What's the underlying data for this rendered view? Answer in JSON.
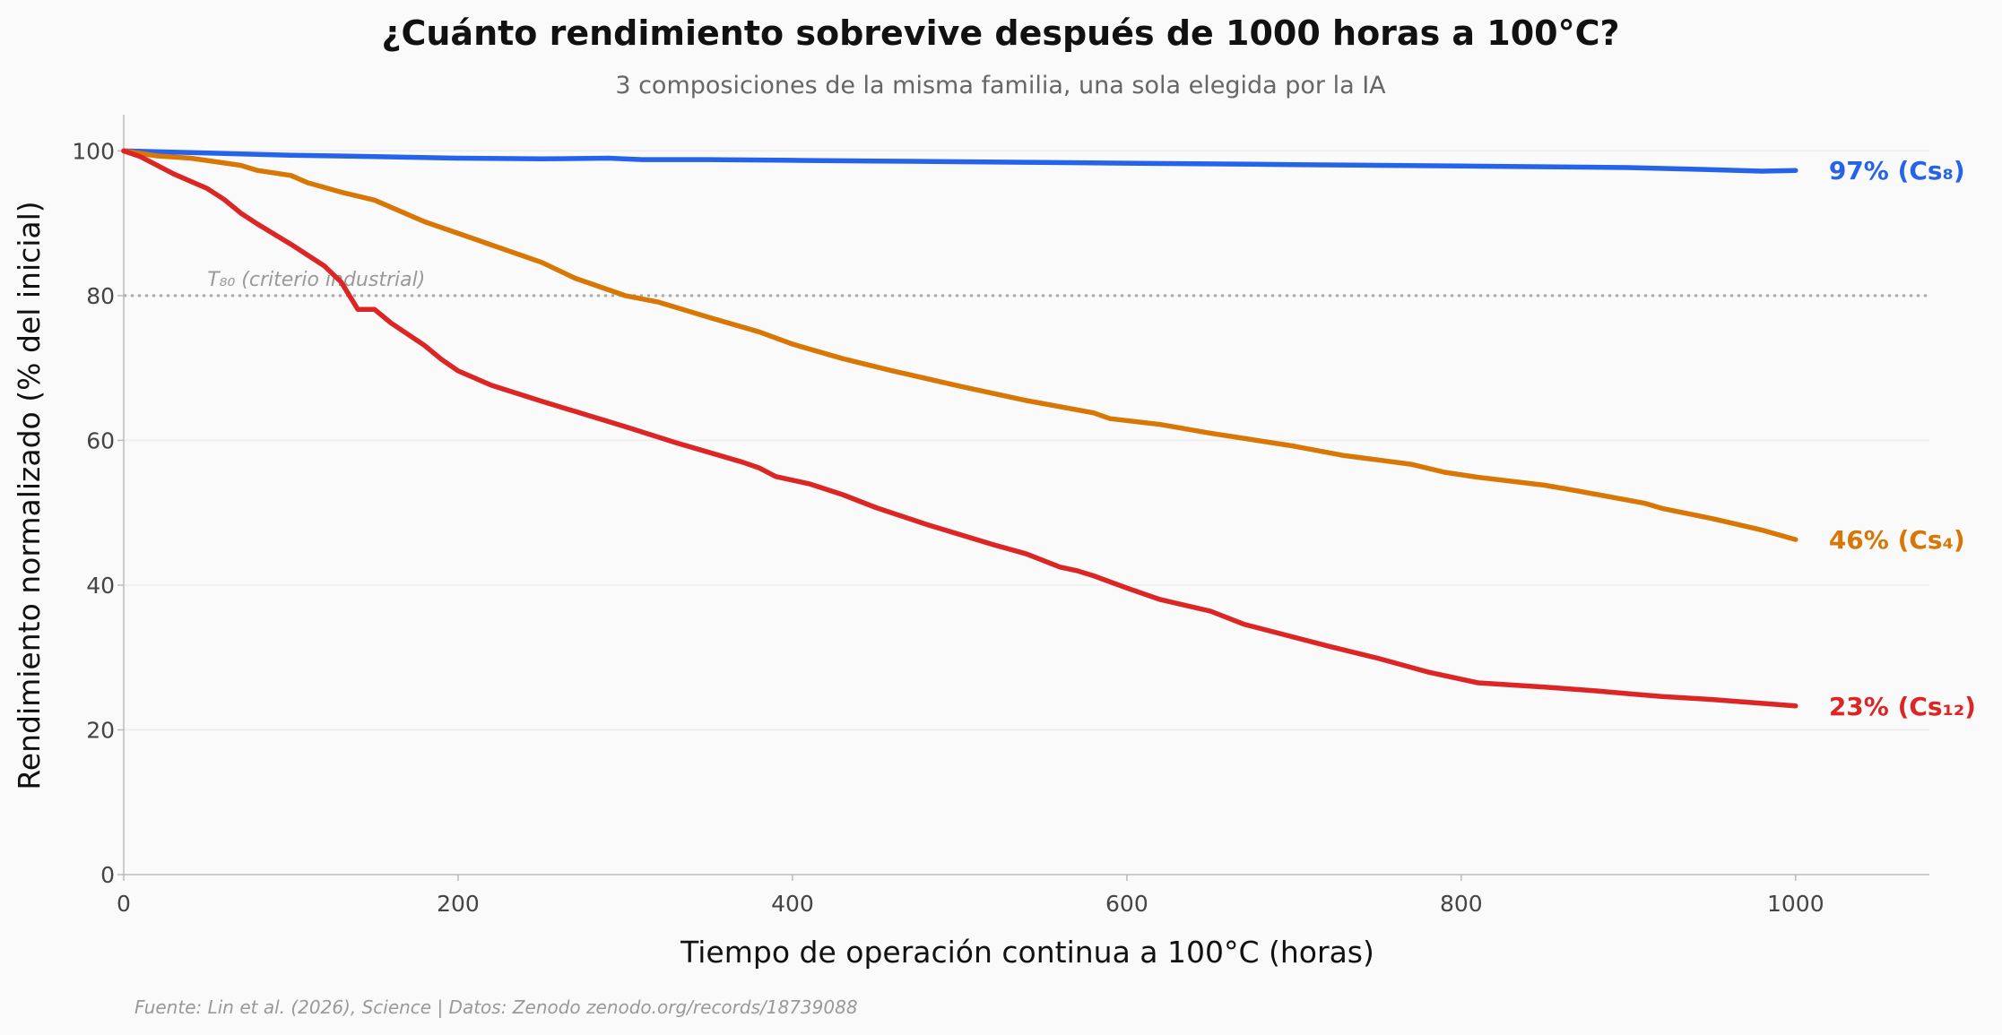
{
  "chart_data": {
    "type": "line",
    "title": "¿Cuánto rendimiento sobrevive después de 1000 horas a 100°C?",
    "subtitle": "3 composiciones de la misma familia, una sola elegida por la IA",
    "xlabel": "Tiempo de operación continua a 100°C (horas)",
    "ylabel": "Rendimiento normalizado (% del inicial)",
    "xlim": [
      0,
      1080
    ],
    "ylim": [
      0,
      105
    ],
    "xticks": [
      0,
      200,
      400,
      600,
      800,
      1000
    ],
    "yticks": [
      0,
      20,
      40,
      60,
      80,
      100
    ],
    "grid": "horizontal",
    "reference_line": {
      "y": 80,
      "label": "T₈₀ (criterio industrial)"
    },
    "source": "Fuente: Lin et al. (2026), Science | Datos: Zenodo zenodo.org/records/18739088",
    "series": [
      {
        "end_label": "97% (Cs₈)",
        "color": "#2563eb",
        "x": [
          0,
          50,
          100,
          150,
          200,
          250,
          290,
          310,
          350,
          400,
          450,
          500,
          550,
          600,
          650,
          700,
          750,
          800,
          850,
          900,
          950,
          980,
          1000
        ],
        "y": [
          100,
          99.7,
          99.4,
          99.2,
          99.0,
          98.9,
          99.0,
          98.8,
          98.8,
          98.7,
          98.6,
          98.5,
          98.4,
          98.3,
          98.2,
          98.1,
          98.0,
          97.9,
          97.8,
          97.7,
          97.4,
          97.2,
          97.3
        ]
      },
      {
        "end_label": "46% (Cs₄)",
        "color": "#d97706",
        "x": [
          0,
          20,
          40,
          70,
          80,
          100,
          110,
          130,
          150,
          180,
          200,
          220,
          250,
          270,
          300,
          320,
          350,
          380,
          400,
          430,
          460,
          500,
          540,
          580,
          590,
          620,
          650,
          700,
          730,
          750,
          770,
          790,
          810,
          850,
          870,
          910,
          920,
          950,
          980,
          1000
        ],
        "y": [
          100,
          99.3,
          99.0,
          98.0,
          97.3,
          96.6,
          95.6,
          94.3,
          93.2,
          90.2,
          88.6,
          87.0,
          84.6,
          82.4,
          80.0,
          79.1,
          77.0,
          75.0,
          73.3,
          71.3,
          69.6,
          67.5,
          65.5,
          63.8,
          63.0,
          62.2,
          61.0,
          59.2,
          57.9,
          57.3,
          56.7,
          55.6,
          54.9,
          53.8,
          53.0,
          51.3,
          50.6,
          49.2,
          47.6,
          46.3
        ]
      },
      {
        "end_label": "23% (Cs₁₂)",
        "color": "#dc2626",
        "x": [
          0,
          10,
          30,
          50,
          60,
          70,
          80,
          100,
          120,
          130,
          140,
          150,
          160,
          180,
          190,
          200,
          220,
          250,
          300,
          330,
          370,
          380,
          390,
          410,
          430,
          450,
          480,
          520,
          540,
          560,
          570,
          580,
          600,
          620,
          650,
          670,
          700,
          720,
          750,
          780,
          810,
          830,
          850,
          880,
          900,
          920,
          950,
          1000
        ],
        "y": [
          100,
          99.2,
          96.8,
          94.8,
          93.3,
          91.4,
          89.9,
          87.1,
          84.1,
          81.9,
          78.1,
          78.1,
          76.2,
          73.1,
          71.2,
          69.6,
          67.6,
          65.4,
          61.9,
          59.7,
          57.0,
          56.2,
          55.0,
          54.0,
          52.5,
          50.7,
          48.4,
          45.6,
          44.3,
          42.5,
          42.0,
          41.3,
          39.6,
          38.0,
          36.4,
          34.6,
          32.8,
          31.6,
          29.9,
          28.0,
          26.5,
          26.2,
          25.9,
          25.4,
          25.0,
          24.6,
          24.2,
          23.3
        ]
      }
    ]
  }
}
